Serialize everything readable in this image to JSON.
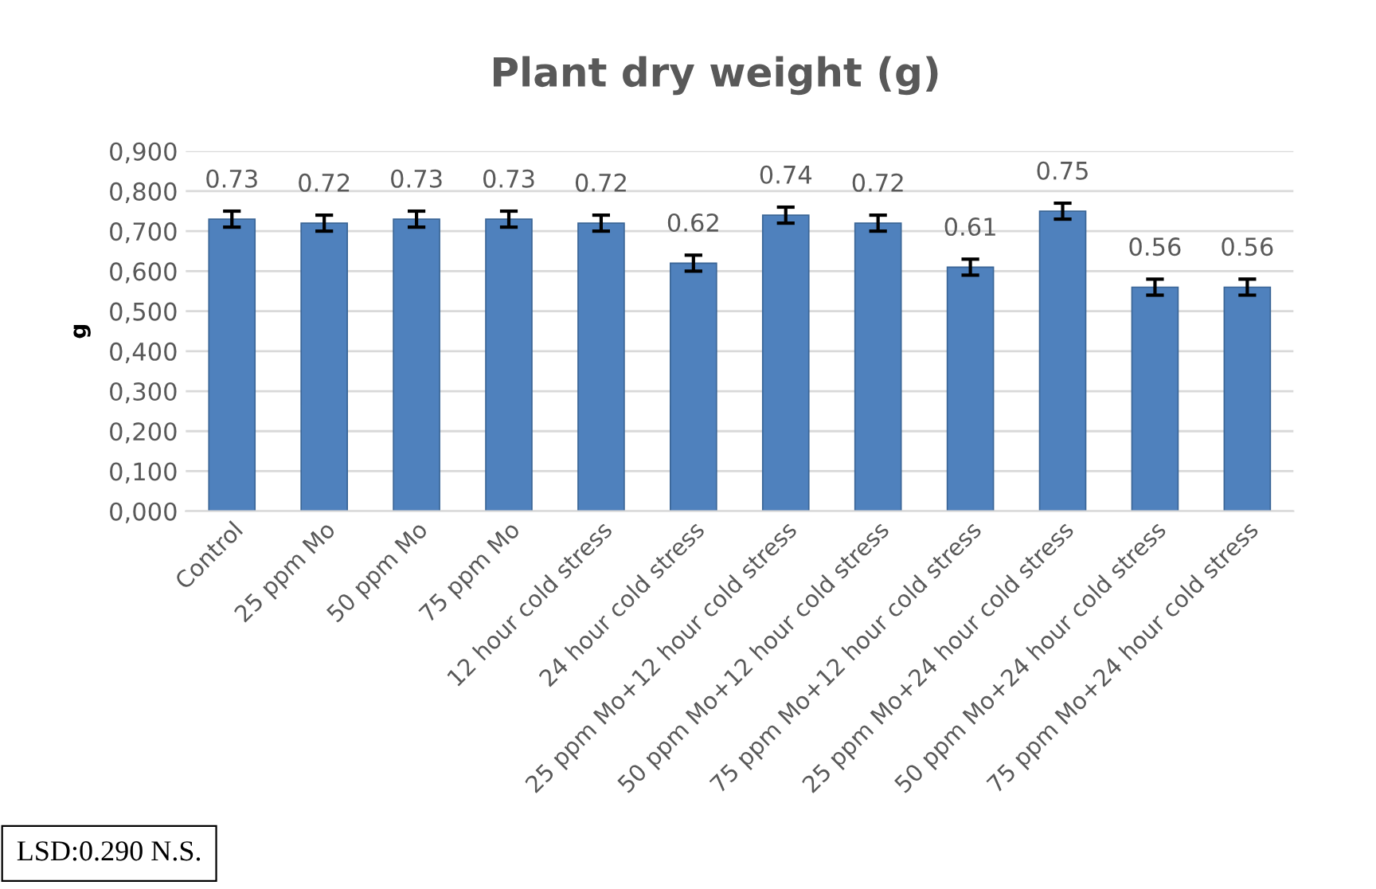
{
  "chart_data": {
    "type": "bar",
    "title": "Plant dry weight (g)",
    "ylabel": "g",
    "categories": [
      "Control",
      "25 ppm Mo",
      "50 ppm Mo",
      "75 ppm Mo",
      "12 hour cold stress",
      "24 hour cold stress",
      "25 ppm Mo+12 hour cold stress",
      "50 ppm Mo+12 hour cold stress",
      "75 ppm Mo+12 hour cold stress",
      "25 ppm Mo+24 hour cold stress",
      "50 ppm Mo+24 hour cold stress",
      "75 ppm Mo+24 hour cold stress"
    ],
    "values": [
      0.73,
      0.72,
      0.73,
      0.73,
      0.72,
      0.62,
      0.74,
      0.72,
      0.61,
      0.75,
      0.56,
      0.56
    ],
    "errors": [
      0.02,
      0.02,
      0.02,
      0.02,
      0.02,
      0.02,
      0.02,
      0.02,
      0.02,
      0.02,
      0.02,
      0.02
    ],
    "color": "#4f81bd",
    "data_labels": true,
    "ylim": [
      0,
      0.9
    ],
    "yticks": [
      {
        "value": 0,
        "label": "0,000"
      },
      {
        "value": 0.1,
        "label": "0,100"
      },
      {
        "value": 0.2,
        "label": "0,200"
      },
      {
        "value": 0.3,
        "label": "0,300"
      },
      {
        "value": 0.4,
        "label": "0,400"
      },
      {
        "value": 0.5,
        "label": "0,500"
      },
      {
        "value": 0.6,
        "label": "0,600"
      },
      {
        "value": 0.7,
        "label": "0,700"
      },
      {
        "value": 0.8,
        "label": "0,800"
      },
      {
        "value": 0.9,
        "label": "0,900"
      }
    ],
    "grid": "y",
    "legend": false,
    "annotations": [
      "LSD:0.290 N.S."
    ]
  }
}
